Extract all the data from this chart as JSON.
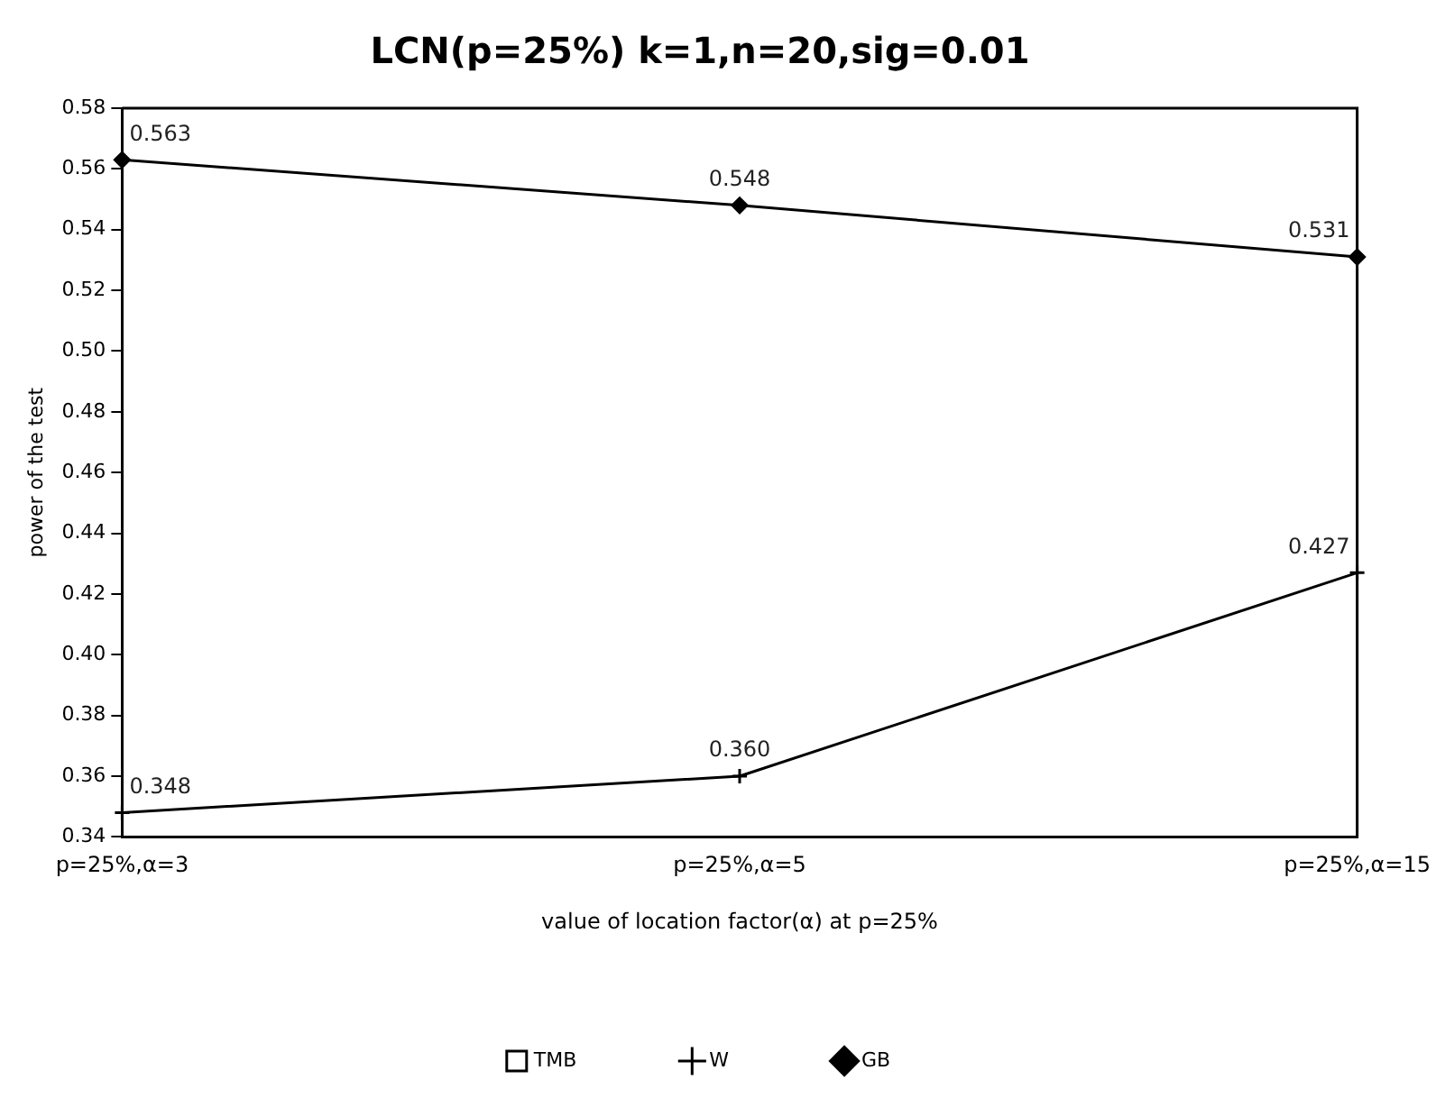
{
  "chart_data": {
    "type": "line",
    "title": "LCN(p=25%) k=1,n=20,sig=0.01",
    "xlabel": "value of location factor(α) at p=25%",
    "ylabel": "power of the test",
    "categories": [
      "p=25%,α=3",
      "p=25%,α=5",
      "p=25%,α=15"
    ],
    "series": [
      {
        "name": "TMB",
        "color": "#000000",
        "marker": "square",
        "values": [
          null,
          null,
          null
        ]
      },
      {
        "name": "W",
        "color": "#000000",
        "marker": "cross",
        "values": [
          0.348,
          0.36,
          0.427
        ],
        "value_labels": [
          "0.348",
          "0.360",
          "0.427"
        ]
      },
      {
        "name": "GB",
        "color": "#000000",
        "marker": "diamond",
        "values": [
          0.563,
          0.548,
          0.531
        ],
        "value_labels": [
          "0.563",
          "0.548",
          "0.531"
        ]
      }
    ],
    "ylim": [
      0.34,
      0.58
    ],
    "yticks": [
      0.34,
      0.36,
      0.38,
      {
        "value": 0.4,
        "label": "0.40"
      },
      0.42,
      0.44,
      0.46,
      0.48,
      {
        "value": 0.5,
        "label": "0.50"
      },
      0.52,
      0.54,
      0.56,
      0.58
    ],
    "grid": false,
    "legend": "bottom",
    "line_style": "solid"
  }
}
